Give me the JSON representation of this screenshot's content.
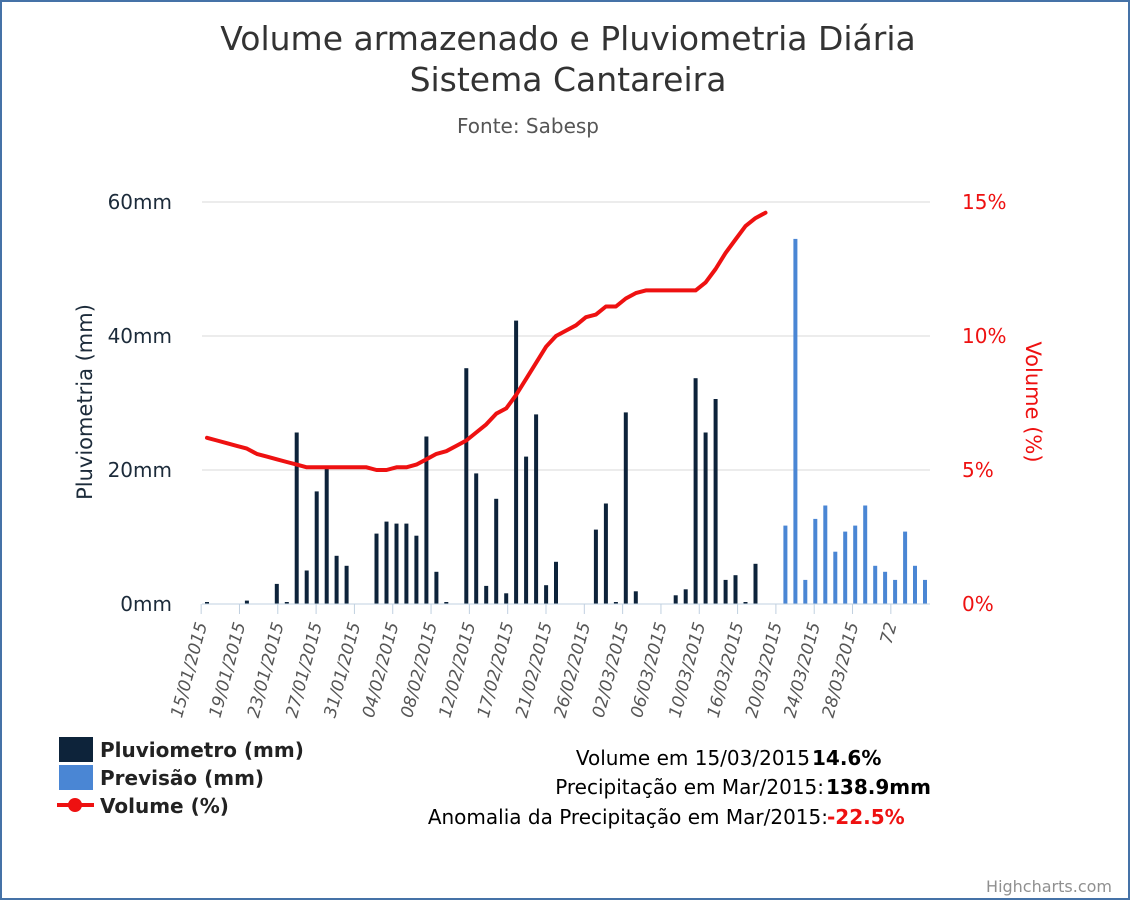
{
  "chart_data": {
    "type": "bar",
    "title": "Volume armazenado e Pluviometria Diária",
    "title_line2": "Sistema Cantareira",
    "subtitle": "Fonte: Sabesp",
    "ylabel_left": "Pluviometria (mm)",
    "ylabel_right": "Volume (%)",
    "y_left_ticks": [
      "0mm",
      "20mm",
      "40mm",
      "60mm"
    ],
    "y_left_range": [
      0,
      60
    ],
    "y_right_ticks": [
      "0%",
      "5%",
      "10%",
      "15%"
    ],
    "y_right_range": [
      0,
      15
    ],
    "grid": true,
    "x_tick_labels": [
      "15/01/2015",
      "19/01/2015",
      "23/01/2015",
      "27/01/2015",
      "31/01/2015",
      "04/02/2015",
      "08/02/2015",
      "12/02/2015",
      "17/02/2015",
      "21/02/2015",
      "26/02/2015",
      "02/03/2015",
      "06/03/2015",
      "10/03/2015",
      "16/03/2015",
      "20/03/2015",
      "24/03/2015",
      "28/03/2015",
      "72"
    ],
    "colors": {
      "pluviometro": "#0d233a",
      "previsao": "#4a86d4",
      "volume": "#ee1111",
      "grid": "#d8d8d8",
      "frame": "#4572a7"
    },
    "series": [
      {
        "name": "Pluviometro (mm)",
        "type": "column",
        "values": [
          0.3,
          0,
          0,
          0,
          0.5,
          0,
          0,
          3,
          0.3,
          25.6,
          5,
          16.8,
          20.5,
          7.2,
          5.7,
          0,
          0,
          10.5,
          12.3,
          12,
          12,
          10.2,
          25,
          4.8,
          0.3,
          0,
          35.2,
          19.5,
          2.7,
          15.7,
          1.6,
          42.3,
          22,
          28.3,
          2.8,
          6.3,
          0,
          0,
          0,
          11.1,
          15,
          0.3,
          28.6,
          1.9,
          0,
          0,
          0,
          1.3,
          2.2,
          33.7,
          25.6,
          30.6,
          3.6,
          4.3,
          0.3,
          6
        ]
      },
      {
        "name": "Previsão (mm)",
        "type": "column",
        "values": [
          null,
          null,
          null,
          null,
          null,
          null,
          null,
          null,
          null,
          null,
          null,
          null,
          null,
          null,
          null,
          null,
          null,
          null,
          null,
          null,
          null,
          null,
          null,
          null,
          null,
          null,
          null,
          null,
          null,
          null,
          null,
          null,
          null,
          null,
          null,
          null,
          null,
          null,
          null,
          null,
          null,
          null,
          null,
          null,
          null,
          null,
          null,
          null,
          null,
          null,
          null,
          null,
          null,
          null,
          null,
          null,
          null,
          null,
          11.7,
          54.5,
          3.6,
          12.7,
          14.7,
          7.8,
          10.8,
          11.7,
          14.7,
          5.7,
          4.8,
          3.6,
          10.8,
          5.7,
          3.6
        ]
      },
      {
        "name": "Volume (%)",
        "type": "line",
        "values": [
          6.2,
          6.1,
          6.0,
          5.9,
          5.8,
          5.6,
          5.5,
          5.4,
          5.3,
          5.2,
          5.1,
          5.1,
          5.1,
          5.1,
          5.1,
          5.1,
          5.1,
          5.0,
          5.0,
          5.1,
          5.1,
          5.2,
          5.4,
          5.6,
          5.7,
          5.9,
          6.1,
          6.4,
          6.7,
          7.1,
          7.3,
          7.8,
          8.4,
          9.0,
          9.6,
          10.0,
          10.2,
          10.4,
          10.7,
          10.8,
          11.1,
          11.1,
          11.4,
          11.6,
          11.7,
          11.7,
          11.7,
          11.7,
          11.7,
          11.7,
          12.0,
          12.5,
          13.1,
          13.6,
          14.1,
          14.4,
          14.6
        ]
      }
    ]
  },
  "legend": {
    "items": [
      {
        "label": "Pluviometro (mm)",
        "color": "#0d233a",
        "symbol": "bar"
      },
      {
        "label": "Previsão (mm)",
        "color": "#4a86d4",
        "symbol": "bar"
      },
      {
        "label": "Volume (%)",
        "color": "#ee1111",
        "symbol": "line"
      }
    ]
  },
  "info": {
    "line1_label": "Volume em 15/03/2015",
    "line1_value": "14.6%",
    "line2_label": "Precipitação em Mar/2015:",
    "line2_value": "138.9mm",
    "line3_label": "Anomalia da Precipitação em Mar/2015:",
    "line3_value": "-22.5%"
  },
  "credits": "Highcharts.com"
}
